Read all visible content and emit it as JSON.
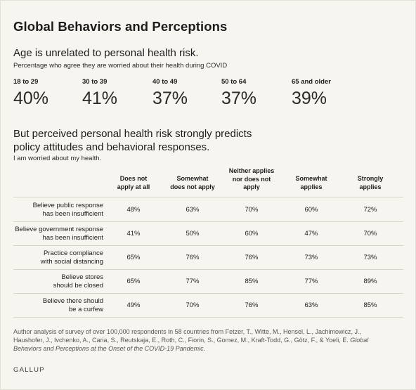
{
  "title": "Global Behaviors and Perceptions",
  "section1": {
    "heading": "Age is unrelated to personal health risk.",
    "subtitle": "Percentage who agree they are worried about their health during COVID",
    "ages": [
      {
        "label": "18 to 29",
        "value": "40%"
      },
      {
        "label": "30 to 39",
        "value": "41%"
      },
      {
        "label": "40 to 49",
        "value": "37%"
      },
      {
        "label": "50 to 64",
        "value": "37%"
      },
      {
        "label": "65 and older",
        "value": "39%"
      }
    ]
  },
  "section2": {
    "heading_line1": "But perceived personal health risk strongly predicts",
    "heading_line2": "policy attitudes and behavioral responses.",
    "subtitle": "I am worried about my health.",
    "columns": [
      [
        "Does not",
        "apply at all"
      ],
      [
        "Somewhat",
        "does not apply"
      ],
      [
        "Neither applies",
        "nor does not",
        "apply"
      ],
      [
        "Somewhat",
        "applies"
      ],
      [
        "Strongly",
        "applies"
      ]
    ],
    "rows": [
      {
        "label": [
          "Believe public response",
          "has been insufficient"
        ],
        "values": [
          "48%",
          "63%",
          "70%",
          "60%",
          "72%"
        ]
      },
      {
        "label": [
          "Believe government response",
          "has been insufficient"
        ],
        "values": [
          "41%",
          "50%",
          "60%",
          "47%",
          "70%"
        ]
      },
      {
        "label": [
          "Practice compliance",
          "with social distancing"
        ],
        "values": [
          "65%",
          "76%",
          "76%",
          "73%",
          "73%"
        ]
      },
      {
        "label": [
          "Believe stores",
          "should be closed"
        ],
        "values": [
          "65%",
          "77%",
          "85%",
          "77%",
          "89%"
        ]
      },
      {
        "label": [
          "Believe there should",
          "be a curfew"
        ],
        "values": [
          "49%",
          "70%",
          "76%",
          "63%",
          "85%"
        ]
      }
    ]
  },
  "source": {
    "line1": "Author analysis of survey of over 100,000 respondents in 58 countries from Fetzer, T., Witte, M., Hensel, L., Jachimowicz, J.,",
    "line2_plain": "Haushofer, J., Ivchenko, A., Caria, S., Reutskaja, E., Roth, C., Fiorin, S., Gomez, M., Kraft-Todd, G., Götz, F., & Yoeli, E. ",
    "line2_italic": "Global",
    "line3_italic": "Behaviors and Perceptions at the Onset of the COVID-19 Pandemic",
    "line3_plain": "."
  },
  "brand": "GALLUP",
  "chart_data": {
    "type": "table",
    "title": "Global Behaviors and Perceptions",
    "subtitle": "I am worried about my health.",
    "categories": [
      "Does not apply at all",
      "Somewhat does not apply",
      "Neither applies nor does not apply",
      "Somewhat applies",
      "Strongly applies"
    ],
    "series": [
      {
        "name": "Believe public response has been insufficient",
        "values": [
          48,
          63,
          70,
          60,
          72
        ]
      },
      {
        "name": "Believe government response has been insufficient",
        "values": [
          41,
          50,
          60,
          47,
          70
        ]
      },
      {
        "name": "Practice compliance with social distancing",
        "values": [
          65,
          76,
          76,
          73,
          73
        ]
      },
      {
        "name": "Believe stores should be closed",
        "values": [
          65,
          77,
          85,
          77,
          89
        ]
      },
      {
        "name": "Believe there should be a curfew",
        "values": [
          49,
          70,
          76,
          63,
          85
        ]
      }
    ],
    "age_categories": [
      "18 to 29",
      "30 to 39",
      "40 to 49",
      "50 to 64",
      "65 and older"
    ],
    "age_values": [
      40,
      41,
      37,
      37,
      39
    ]
  }
}
